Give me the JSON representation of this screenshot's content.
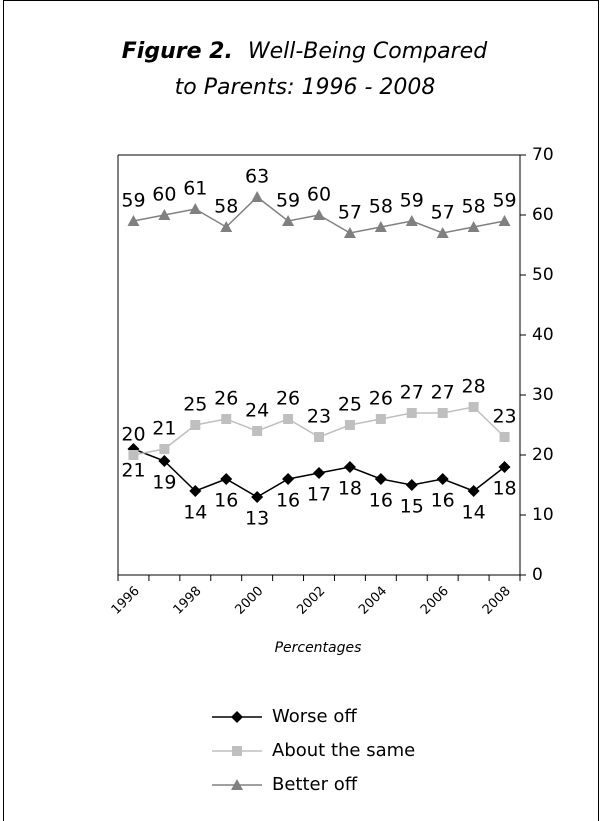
{
  "chart_data": {
    "type": "line",
    "title_label": "Figure 2.",
    "title": [
      "Well-Being Compared",
      "to Parents:  1996 - 2008"
    ],
    "x_label": "Percentages",
    "categories": [
      "1996",
      null,
      "1998",
      null,
      "2000",
      null,
      "2002",
      null,
      "2004",
      null,
      "2006",
      null,
      "2008"
    ],
    "series": [
      {
        "name": "Worse off",
        "color": "#000000",
        "marker": "diamond",
        "label_side": "below",
        "values": [
          21,
          19,
          14,
          16,
          13,
          16,
          17,
          18,
          16,
          15,
          16,
          14,
          18
        ]
      },
      {
        "name": "About the same",
        "color": "#bfbfbf",
        "marker": "square",
        "label_side": "above",
        "values": [
          20,
          21,
          25,
          26,
          24,
          26,
          23,
          25,
          26,
          27,
          27,
          28,
          23
        ]
      },
      {
        "name": "Better off",
        "color": "#808080",
        "marker": "triangle",
        "label_side": "above",
        "values": [
          59,
          60,
          61,
          58,
          63,
          59,
          60,
          57,
          58,
          59,
          57,
          58,
          59
        ]
      }
    ],
    "ylim": [
      0,
      70
    ],
    "yticks": [
      0,
      10,
      20,
      30,
      40,
      50,
      60,
      70
    ],
    "y_axis_side": "right",
    "grid": false
  }
}
